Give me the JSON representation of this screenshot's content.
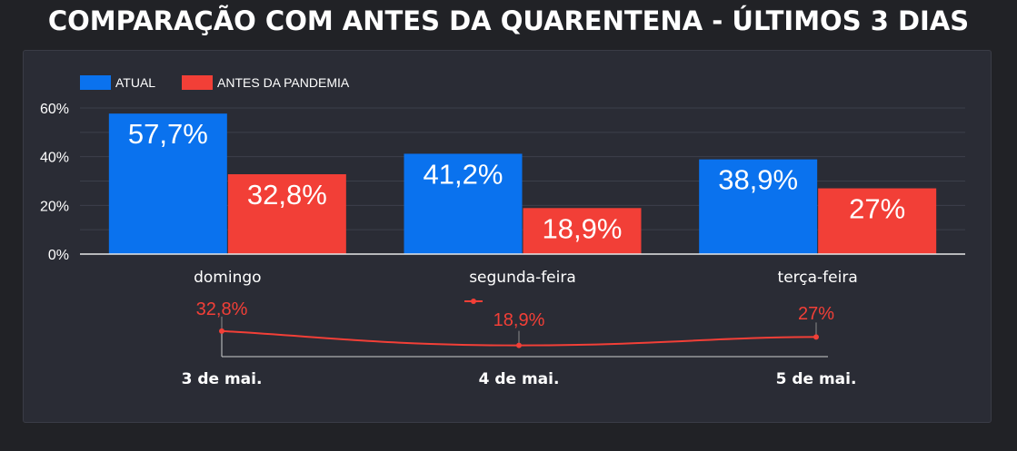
{
  "title": "COMPARAÇÃO COM ANTES DA QUARENTENA - ÚLTIMOS 3 DIAS",
  "colors": {
    "background": "#212226",
    "panel": "#2a2c35",
    "atual": "#0a72ee",
    "antes": "#f23f37",
    "grid": "#3c3f4b",
    "text": "#ffffff"
  },
  "chart_data": [
    {
      "type": "bar",
      "categories": [
        "domingo",
        "segunda-feira",
        "terça-feira"
      ],
      "series": [
        {
          "name": "ATUAL",
          "values": [
            57.7,
            41.2,
            38.9
          ],
          "labels": [
            "57,7%",
            "41,2%",
            "38,9%"
          ]
        },
        {
          "name": "ANTES DA PANDEMIA",
          "values": [
            32.8,
            18.9,
            27
          ],
          "labels": [
            "32,8%",
            "18,9%",
            "27%"
          ]
        }
      ],
      "ylim": [
        0,
        60
      ],
      "yticks": [
        0,
        20,
        40,
        60
      ],
      "ytick_labels": [
        "0%",
        "20%",
        "40%",
        "60%"
      ],
      "grid": true,
      "legend": "top-left"
    },
    {
      "type": "line",
      "x": [
        "3 de mai.",
        "4 de mai.",
        "5 de mai."
      ],
      "values": [
        32.8,
        18.9,
        27
      ],
      "labels": [
        "32,8%",
        "18,9%",
        "27%"
      ],
      "color": "#f23f37"
    }
  ]
}
